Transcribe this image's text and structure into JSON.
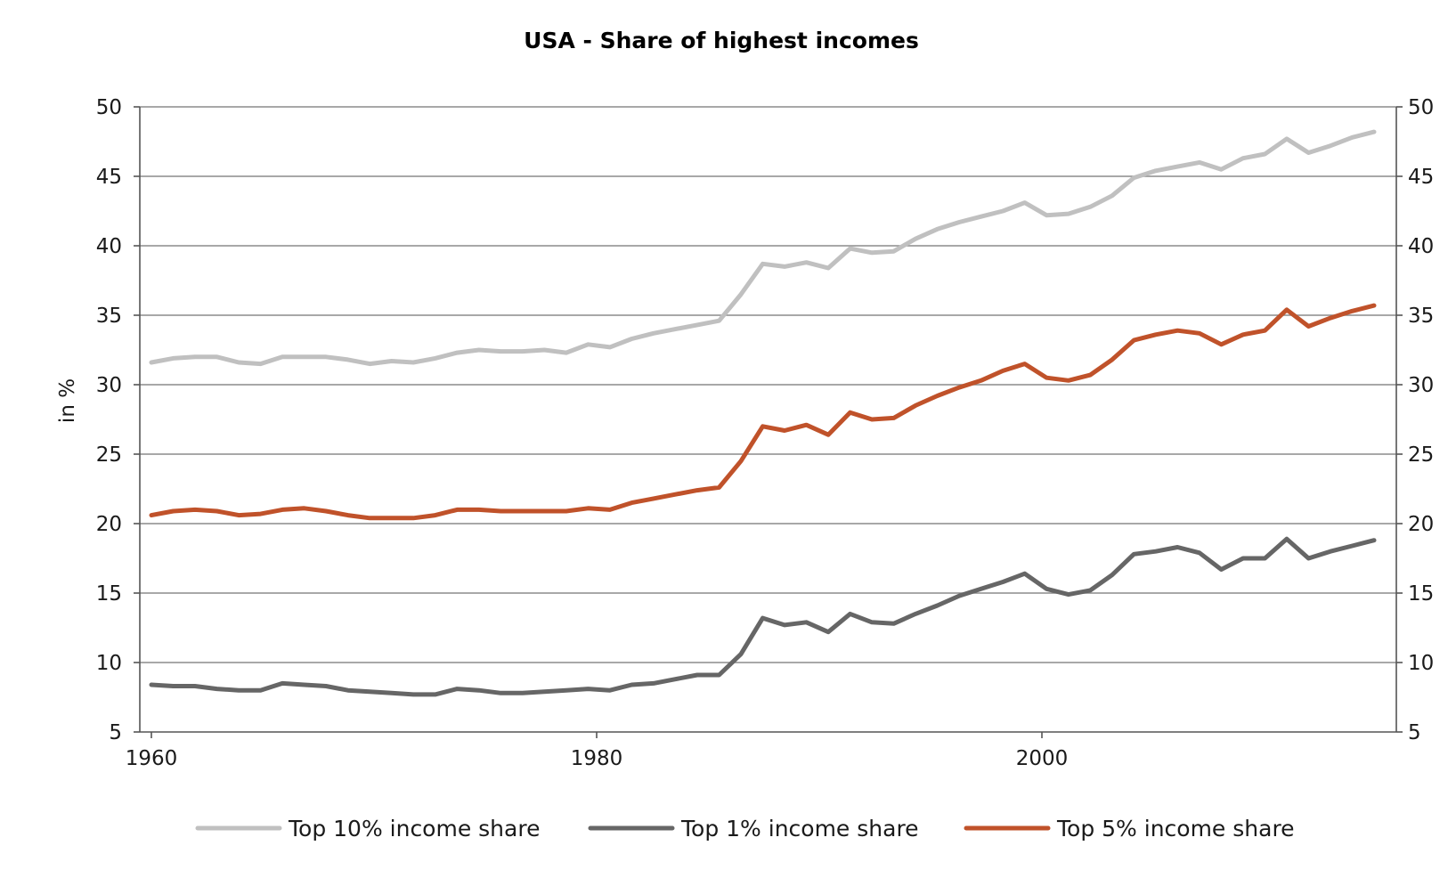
{
  "chart_data": {
    "type": "line",
    "title": "USA - Share of highest incomes",
    "xlabel": "",
    "ylabel": "in %",
    "xlim": [
      1960,
      2016
    ],
    "ylim": [
      5,
      50
    ],
    "x_ticks": [
      "1960",
      "1980",
      "2000"
    ],
    "y_ticks": [
      "5",
      "10",
      "15",
      "20",
      "25",
      "30",
      "35",
      "40",
      "45",
      "50"
    ],
    "grid": "horizontal",
    "secondary_y_axis": true,
    "legend_position": "bottom",
    "x": [
      1960,
      1961,
      1962,
      1963,
      1964,
      1965,
      1966,
      1967,
      1968,
      1969,
      1970,
      1971,
      1972,
      1973,
      1974,
      1975,
      1976,
      1977,
      1978,
      1979,
      1980,
      1981,
      1982,
      1983,
      1984,
      1985,
      1986,
      1987,
      1988,
      1989,
      1990,
      1991,
      1992,
      1993,
      1994,
      1995,
      1996,
      1997,
      1998,
      1999,
      2000,
      2001,
      2002,
      2003,
      2004,
      2005,
      2006,
      2007,
      2008,
      2009,
      2010,
      2011,
      2012,
      2013,
      2014,
      2015,
      2016
    ],
    "series": [
      {
        "name": "Top 10% income share",
        "color": "#c0c0c0",
        "values": [
          31.6,
          31.9,
          32.0,
          32.0,
          31.6,
          31.5,
          32.0,
          32.0,
          32.0,
          31.8,
          31.5,
          31.7,
          31.6,
          31.9,
          32.3,
          32.5,
          32.4,
          32.4,
          32.5,
          32.3,
          32.9,
          32.7,
          33.3,
          33.7,
          34.0,
          34.3,
          34.6,
          36.5,
          38.7,
          38.5,
          38.8,
          38.4,
          39.8,
          39.5,
          39.6,
          40.5,
          41.2,
          41.7,
          42.1,
          42.5,
          43.1,
          42.2,
          42.3,
          42.8,
          43.6,
          44.9,
          45.4,
          45.7,
          46.0,
          45.5,
          46.3,
          46.6,
          47.7,
          46.7,
          47.2,
          47.8,
          48.2
        ]
      },
      {
        "name": "Top 1% income share",
        "color": "#666666",
        "values": [
          8.4,
          8.3,
          8.3,
          8.1,
          8.0,
          8.0,
          8.5,
          8.4,
          8.3,
          8.0,
          7.9,
          7.8,
          7.7,
          7.7,
          8.1,
          8.0,
          7.8,
          7.8,
          7.9,
          8.0,
          8.1,
          8.0,
          8.4,
          8.5,
          8.8,
          9.1,
          9.1,
          10.6,
          13.2,
          12.7,
          12.9,
          12.2,
          13.5,
          12.9,
          12.8,
          13.5,
          14.1,
          14.8,
          15.3,
          15.8,
          16.4,
          15.3,
          14.9,
          15.2,
          16.3,
          17.8,
          18.0,
          18.3,
          17.9,
          16.7,
          17.5,
          17.5,
          18.9,
          17.5,
          18.0,
          18.4,
          18.8
        ]
      },
      {
        "name": "Top 5% income share",
        "color": "#c0522a",
        "values": [
          20.6,
          20.9,
          21.0,
          20.9,
          20.6,
          20.7,
          21.0,
          21.1,
          20.9,
          20.6,
          20.4,
          20.4,
          20.4,
          20.6,
          21.0,
          21.0,
          20.9,
          20.9,
          20.9,
          20.9,
          21.1,
          21.0,
          21.5,
          21.8,
          22.1,
          22.4,
          22.6,
          24.5,
          27.0,
          26.7,
          27.1,
          26.4,
          28.0,
          27.5,
          27.6,
          28.5,
          29.2,
          29.8,
          30.3,
          31.0,
          31.5,
          30.5,
          30.3,
          30.7,
          31.8,
          33.2,
          33.6,
          33.9,
          33.7,
          32.9,
          33.6,
          33.9,
          35.4,
          34.2,
          34.8,
          35.3,
          35.7
        ]
      }
    ]
  }
}
